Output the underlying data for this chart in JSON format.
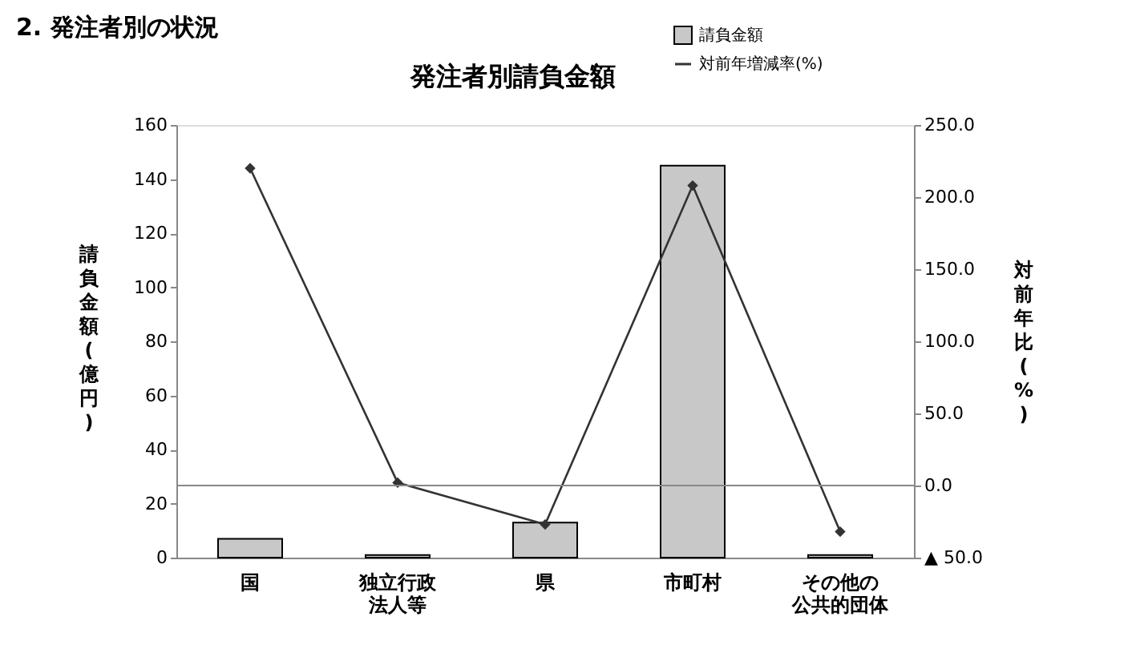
{
  "chart_data": {
    "type": "bar",
    "title": "発注者別請負金額",
    "annotations": [
      "2. 発注者別の状況"
    ],
    "categories": [
      "国",
      "独立行政法人等",
      "県",
      "市町村",
      "その他の公共的団体"
    ],
    "series": [
      {
        "name": "請負金額",
        "color": "#c8c8c8",
        "values": [
          7,
          1,
          13,
          145,
          1
        ]
      },
      {
        "name": "対前年増減率(%)",
        "type": "line",
        "axis": "y2",
        "color": "#333333",
        "marker": "diamond",
        "values": [
          220,
          2,
          -27,
          208,
          -32
        ]
      }
    ],
    "ylabel": "請負金額(億円)",
    "y2label": "対前年比(%)",
    "ylim": [
      0,
      160
    ],
    "yticks": [
      0,
      20,
      40,
      60,
      80,
      100,
      120,
      140,
      160
    ],
    "y2lim": [
      -50,
      250
    ],
    "y2ticks": [
      {
        "value": -50,
        "label": "▲ 50.0"
      },
      {
        "value": 0,
        "label": "0.0"
      },
      {
        "value": 50,
        "label": "50.0"
      },
      {
        "value": 100,
        "label": "100.0"
      },
      {
        "value": 150,
        "label": "150.0"
      },
      {
        "value": 200,
        "label": "200.0"
      },
      {
        "value": 250,
        "label": "250.0"
      }
    ],
    "ref_lines": [
      {
        "axis": "y2",
        "value": 0,
        "color": "#888888"
      }
    ],
    "grid": false,
    "legend": "top right"
  }
}
